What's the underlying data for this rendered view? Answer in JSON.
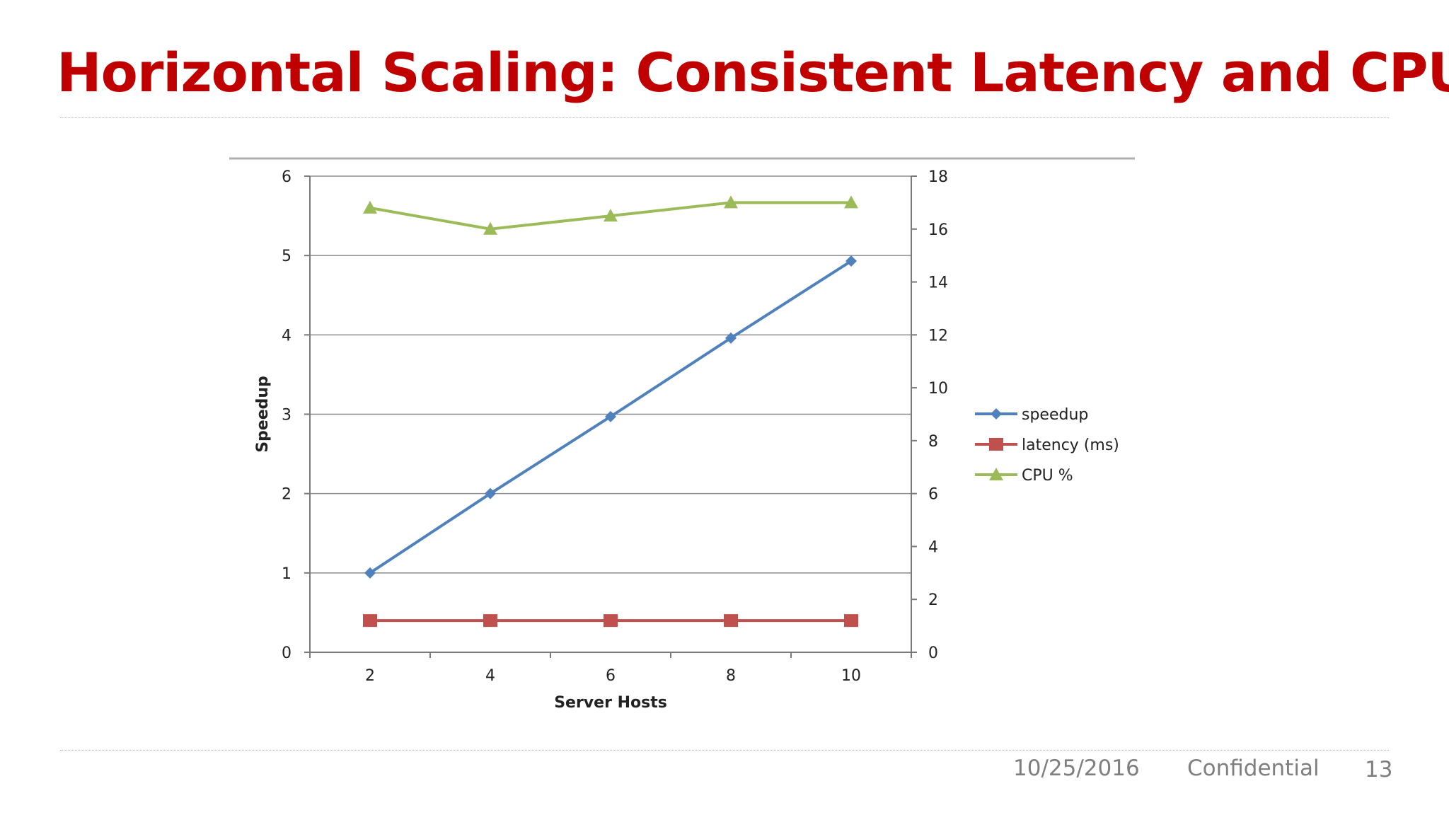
{
  "slide": {
    "title": "Horizontal Scaling: Consistent Latency and CPU",
    "footer_date": "10/25/2016",
    "footer_label": "Confidential",
    "page_number": "13"
  },
  "colors": {
    "title": "#c00000",
    "speedup": "#4f81bd",
    "latency": "#c0504d",
    "cpu": "#9bbb59"
  },
  "chart_data": {
    "type": "line",
    "title": "",
    "xlabel": "Server Hosts",
    "ylabel": "Speedup",
    "x": [
      2,
      4,
      6,
      8,
      10
    ],
    "x_ticks": [
      "2",
      "4",
      "6",
      "8",
      "10"
    ],
    "ylim": [
      0,
      6
    ],
    "y_ticks": [
      "0",
      "1",
      "2",
      "3",
      "4",
      "5",
      "6"
    ],
    "y2lim": [
      0,
      18
    ],
    "y2_ticks": [
      "0",
      "2",
      "4",
      "6",
      "8",
      "10",
      "12",
      "14",
      "16",
      "18"
    ],
    "grid": true,
    "legend_position": "right",
    "series": [
      {
        "name": "speedup",
        "axis": "left",
        "marker": "diamond",
        "color": "#4f81bd",
        "values": [
          1.0,
          2.0,
          2.97,
          3.96,
          4.93
        ]
      },
      {
        "name": "latency (ms)",
        "axis": "right",
        "marker": "square",
        "color": "#c0504d",
        "values": [
          1.2,
          1.2,
          1.2,
          1.2,
          1.2
        ]
      },
      {
        "name": "CPU %",
        "axis": "right",
        "marker": "triangle",
        "color": "#9bbb59",
        "values": [
          16.8,
          16.0,
          16.5,
          17.0,
          17.0
        ]
      }
    ]
  }
}
